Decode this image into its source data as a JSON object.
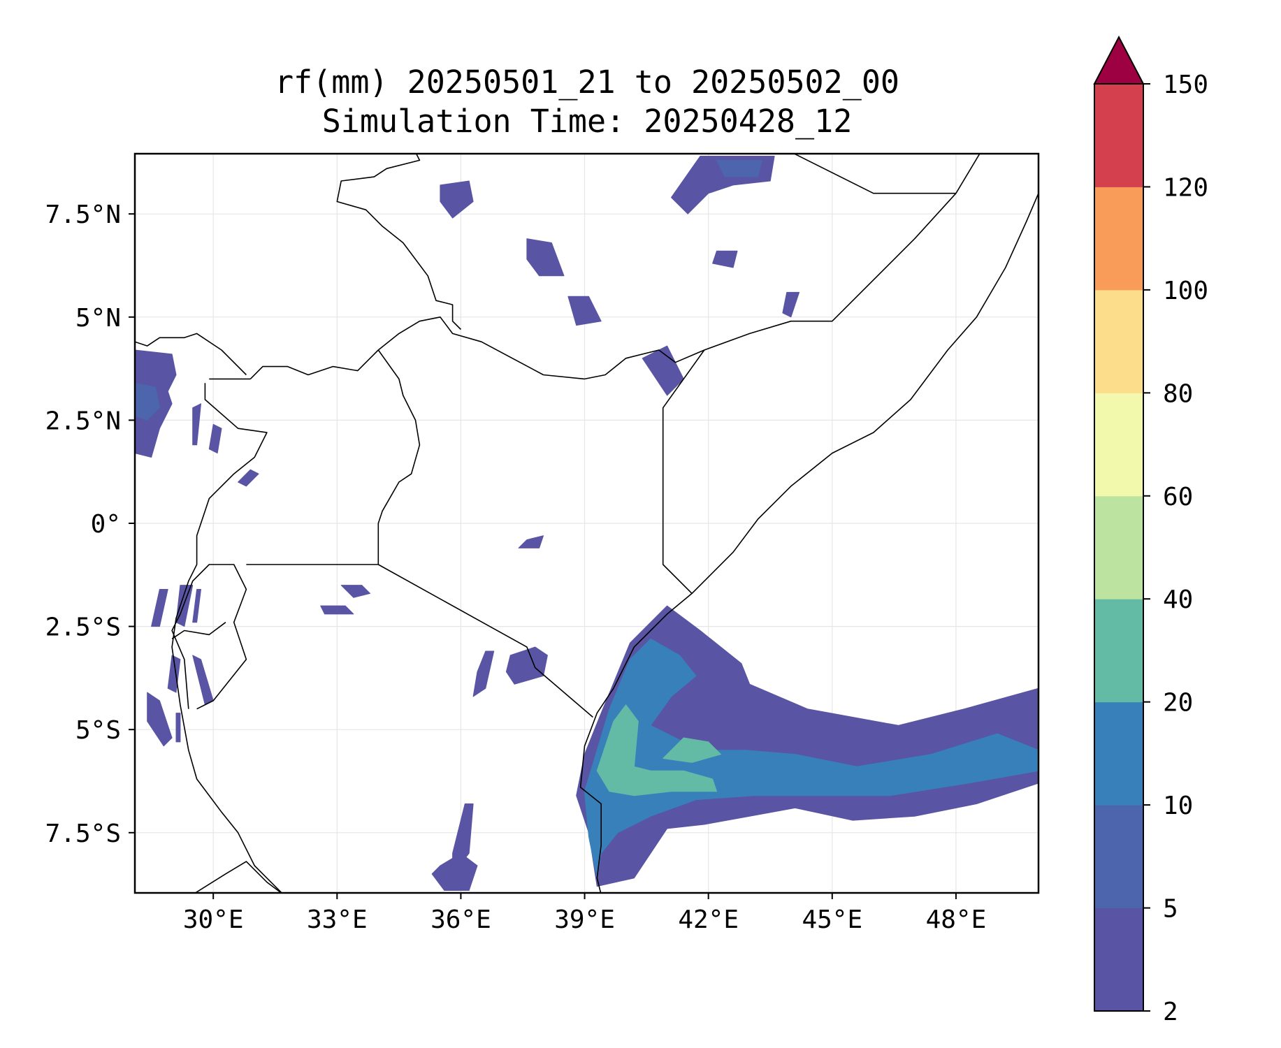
{
  "title": {
    "line1": "rf(mm) 20250501_21 to 20250502_00",
    "line2": "Simulation Time: 20250428_12"
  },
  "map": {
    "lon_range": [
      28.1,
      50.0
    ],
    "lat_range": [
      -8.96,
      8.96
    ],
    "lon_ticks": [
      {
        "value": 30,
        "label": "30°E"
      },
      {
        "value": 33,
        "label": "33°E"
      },
      {
        "value": 36,
        "label": "36°E"
      },
      {
        "value": 39,
        "label": "39°E"
      },
      {
        "value": 42,
        "label": "42°E"
      },
      {
        "value": 45,
        "label": "45°E"
      },
      {
        "value": 48,
        "label": "48°E"
      }
    ],
    "lat_ticks": [
      {
        "value": 7.5,
        "label": "7.5°N"
      },
      {
        "value": 5,
        "label": "5°N"
      },
      {
        "value": 2.5,
        "label": "2.5°N"
      },
      {
        "value": 0,
        "label": "0°"
      },
      {
        "value": -2.5,
        "label": "2.5°S"
      },
      {
        "value": -5,
        "label": "5°S"
      },
      {
        "value": -7.5,
        "label": "7.5°S"
      }
    ],
    "grid": true,
    "borders_color": "#000000"
  },
  "colorbar": {
    "levels": [
      2,
      5,
      10,
      20,
      40,
      60,
      80,
      100,
      120,
      150
    ],
    "labels": [
      "2",
      "5",
      "10",
      "20",
      "40",
      "60",
      "80",
      "100",
      "120",
      "150"
    ],
    "colors": [
      "#5954a4",
      "#4c65ad",
      "#3880ba",
      "#63bba6",
      "#bde3a0",
      "#f2f9ad",
      "#fcdd8c",
      "#f99c5a",
      "#d5404e"
    ],
    "extend_color": "#9e0142",
    "extend": "max",
    "placement": "right"
  },
  "rain_areas": [
    {
      "cat": 0,
      "poly": [
        [
          28.1,
          4.2
        ],
        [
          29.0,
          4.1
        ],
        [
          29.1,
          3.6
        ],
        [
          28.9,
          3.2
        ],
        [
          29.0,
          2.9
        ],
        [
          28.7,
          2.3
        ],
        [
          28.5,
          1.6
        ],
        [
          28.1,
          1.7
        ]
      ]
    },
    {
      "cat": 1,
      "poly": [
        [
          28.1,
          3.4
        ],
        [
          28.6,
          3.3
        ],
        [
          28.7,
          2.8
        ],
        [
          28.4,
          2.5
        ],
        [
          28.1,
          2.6
        ]
      ]
    },
    {
      "cat": 0,
      "poly": [
        [
          29.5,
          2.8
        ],
        [
          29.7,
          2.9
        ],
        [
          29.6,
          1.9
        ],
        [
          29.5,
          1.9
        ]
      ]
    },
    {
      "cat": 0,
      "poly": [
        [
          30.0,
          2.4
        ],
        [
          30.2,
          2.3
        ],
        [
          30.1,
          1.7
        ],
        [
          29.9,
          1.8
        ]
      ]
    },
    {
      "cat": 0,
      "poly": [
        [
          30.9,
          1.3
        ],
        [
          31.1,
          1.2
        ],
        [
          30.8,
          0.9
        ],
        [
          30.6,
          1.0
        ]
      ]
    },
    {
      "cat": 0,
      "poly": [
        [
          28.7,
          -1.6
        ],
        [
          28.9,
          -1.6
        ],
        [
          28.7,
          -2.5
        ],
        [
          28.5,
          -2.5
        ]
      ]
    },
    {
      "cat": 0,
      "poly": [
        [
          29.2,
          -1.5
        ],
        [
          29.5,
          -1.5
        ],
        [
          29.3,
          -2.5
        ],
        [
          29.1,
          -2.4
        ]
      ]
    },
    {
      "cat": 0,
      "poly": [
        [
          29.6,
          -1.6
        ],
        [
          29.7,
          -1.6
        ],
        [
          29.6,
          -2.4
        ],
        [
          29.5,
          -2.4
        ]
      ]
    },
    {
      "cat": 0,
      "poly": [
        [
          29.0,
          -3.2
        ],
        [
          29.2,
          -3.3
        ],
        [
          29.1,
          -4.1
        ],
        [
          28.9,
          -4.0
        ]
      ]
    },
    {
      "cat": 0,
      "poly": [
        [
          29.5,
          -3.2
        ],
        [
          29.7,
          -3.3
        ],
        [
          30.0,
          -4.3
        ],
        [
          29.8,
          -4.4
        ]
      ]
    },
    {
      "cat": 0,
      "poly": [
        [
          28.4,
          -4.1
        ],
        [
          28.7,
          -4.3
        ],
        [
          29.0,
          -5.2
        ],
        [
          28.8,
          -5.4
        ],
        [
          28.4,
          -4.8
        ]
      ]
    },
    {
      "cat": 0,
      "poly": [
        [
          29.1,
          -4.6
        ],
        [
          29.2,
          -4.6
        ],
        [
          29.2,
          -5.3
        ],
        [
          29.1,
          -5.3
        ]
      ]
    },
    {
      "cat": 0,
      "poly": [
        [
          33.1,
          -1.5
        ],
        [
          33.6,
          -1.5
        ],
        [
          33.8,
          -1.7
        ],
        [
          33.4,
          -1.8
        ]
      ]
    },
    {
      "cat": 0,
      "poly": [
        [
          32.6,
          -2.0
        ],
        [
          33.2,
          -2.0
        ],
        [
          33.4,
          -2.2
        ],
        [
          32.7,
          -2.2
        ]
      ]
    },
    {
      "cat": 0,
      "poly": [
        [
          36.6,
          -3.1
        ],
        [
          36.8,
          -3.1
        ],
        [
          36.6,
          -4.0
        ],
        [
          36.3,
          -4.2
        ],
        [
          36.4,
          -3.6
        ]
      ]
    },
    {
      "cat": 0,
      "poly": [
        [
          37.2,
          -3.2
        ],
        [
          37.8,
          -3.0
        ],
        [
          38.1,
          -3.2
        ],
        [
          38.0,
          -3.7
        ],
        [
          37.3,
          -3.9
        ],
        [
          37.1,
          -3.6
        ]
      ]
    },
    {
      "cat": 0,
      "poly": [
        [
          37.6,
          -0.4
        ],
        [
          38.0,
          -0.3
        ],
        [
          37.9,
          -0.6
        ],
        [
          37.4,
          -0.6
        ]
      ]
    },
    {
      "cat": 0,
      "poly": [
        [
          36.1,
          -6.8
        ],
        [
          36.3,
          -6.8
        ],
        [
          36.2,
          -8.0
        ],
        [
          35.8,
          -8.5
        ],
        [
          35.8,
          -8.0
        ]
      ]
    },
    {
      "cat": 0,
      "poly": [
        [
          35.5,
          -8.3
        ],
        [
          36.0,
          -8.0
        ],
        [
          36.4,
          -8.3
        ],
        [
          36.2,
          -8.9
        ],
        [
          35.6,
          -8.9
        ],
        [
          35.3,
          -8.5
        ]
      ]
    },
    {
      "cat": 0,
      "poly": [
        [
          35.5,
          8.2
        ],
        [
          36.2,
          8.3
        ],
        [
          36.3,
          7.8
        ],
        [
          35.8,
          7.4
        ],
        [
          35.5,
          7.8
        ]
      ]
    },
    {
      "cat": 0,
      "poly": [
        [
          37.6,
          6.9
        ],
        [
          38.2,
          6.8
        ],
        [
          38.5,
          6.0
        ],
        [
          37.9,
          6.0
        ],
        [
          37.6,
          6.4
        ]
      ]
    },
    {
      "cat": 0,
      "poly": [
        [
          38.6,
          5.5
        ],
        [
          39.1,
          5.5
        ],
        [
          39.4,
          4.9
        ],
        [
          38.8,
          4.8
        ]
      ]
    },
    {
      "cat": 0,
      "poly": [
        [
          41.8,
          8.9
        ],
        [
          43.6,
          8.9
        ],
        [
          43.5,
          8.3
        ],
        [
          42.6,
          8.2
        ],
        [
          42.0,
          8.0
        ],
        [
          41.5,
          7.5
        ],
        [
          41.1,
          7.9
        ]
      ]
    },
    {
      "cat": 1,
      "poly": [
        [
          42.2,
          8.8
        ],
        [
          43.3,
          8.8
        ],
        [
          43.2,
          8.4
        ],
        [
          42.4,
          8.4
        ]
      ]
    },
    {
      "cat": 0,
      "poly": [
        [
          42.2,
          6.6
        ],
        [
          42.7,
          6.6
        ],
        [
          42.6,
          6.2
        ],
        [
          42.1,
          6.3
        ]
      ]
    },
    {
      "cat": 0,
      "poly": [
        [
          43.9,
          5.6
        ],
        [
          44.2,
          5.6
        ],
        [
          44.0,
          5.0
        ],
        [
          43.8,
          5.1
        ]
      ]
    },
    {
      "cat": 0,
      "poly": [
        [
          40.4,
          4.0
        ],
        [
          41.0,
          4.3
        ],
        [
          41.4,
          3.5
        ],
        [
          41.0,
          3.1
        ]
      ]
    },
    {
      "cat": 0,
      "poly": [
        [
          39.4,
          -4.6
        ],
        [
          40.1,
          -2.9
        ],
        [
          41.0,
          -2.0
        ],
        [
          41.8,
          -2.6
        ],
        [
          42.8,
          -3.4
        ],
        [
          43.0,
          -3.9
        ],
        [
          44.4,
          -4.5
        ],
        [
          46.6,
          -4.9
        ],
        [
          48.2,
          -4.5
        ],
        [
          50.0,
          -4.0
        ],
        [
          50.0,
          -6.3
        ],
        [
          48.5,
          -6.8
        ],
        [
          47.0,
          -7.1
        ],
        [
          45.5,
          -7.2
        ],
        [
          44.1,
          -6.9
        ],
        [
          43.0,
          -7.1
        ],
        [
          41.9,
          -7.3
        ],
        [
          41.0,
          -7.4
        ],
        [
          40.2,
          -8.6
        ],
        [
          39.3,
          -8.8
        ],
        [
          39.1,
          -7.5
        ],
        [
          38.8,
          -6.6
        ],
        [
          39.0,
          -5.6
        ]
      ]
    },
    {
      "cat": 2,
      "poly": [
        [
          39.6,
          -4.5
        ],
        [
          40.1,
          -3.3
        ],
        [
          40.6,
          -2.8
        ],
        [
          41.3,
          -3.2
        ],
        [
          41.7,
          -3.7
        ],
        [
          41.1,
          -4.2
        ],
        [
          40.6,
          -4.9
        ],
        [
          41.8,
          -5.5
        ],
        [
          42.9,
          -5.5
        ],
        [
          44.1,
          -5.6
        ],
        [
          45.6,
          -5.9
        ],
        [
          47.4,
          -5.6
        ],
        [
          49.0,
          -5.1
        ],
        [
          50.0,
          -5.5
        ],
        [
          50.0,
          -6.0
        ],
        [
          48.3,
          -6.3
        ],
        [
          46.4,
          -6.6
        ],
        [
          44.9,
          -6.6
        ],
        [
          43.1,
          -6.6
        ],
        [
          41.7,
          -6.7
        ],
        [
          40.6,
          -7.1
        ],
        [
          39.8,
          -7.5
        ],
        [
          39.4,
          -8.0
        ],
        [
          39.3,
          -8.6
        ],
        [
          39.1,
          -7.6
        ],
        [
          39.0,
          -6.5
        ],
        [
          39.3,
          -5.5
        ]
      ]
    },
    {
      "cat": 3,
      "poly": [
        [
          39.7,
          -4.8
        ],
        [
          40.0,
          -4.4
        ],
        [
          40.3,
          -4.8
        ],
        [
          40.2,
          -5.9
        ],
        [
          40.6,
          -6.0
        ],
        [
          41.4,
          -6.0
        ],
        [
          42.1,
          -6.2
        ],
        [
          42.2,
          -6.5
        ],
        [
          41.1,
          -6.5
        ],
        [
          40.2,
          -6.6
        ],
        [
          39.6,
          -6.5
        ],
        [
          39.3,
          -6.0
        ],
        [
          39.5,
          -5.4
        ]
      ]
    },
    {
      "cat": 3,
      "poly": [
        [
          40.9,
          -5.7
        ],
        [
          41.4,
          -5.2
        ],
        [
          42.0,
          -5.3
        ],
        [
          42.3,
          -5.6
        ],
        [
          41.6,
          -5.8
        ]
      ]
    }
  ],
  "borders": [
    [
      [
        29.5,
        -9.0
      ],
      [
        30.3,
        -8.5
      ],
      [
        30.8,
        -8.2
      ],
      [
        31.3,
        -8.7
      ],
      [
        31.7,
        -9.0
      ]
    ],
    [
      [
        29.4,
        -4.5
      ],
      [
        29.3,
        -3.3
      ],
      [
        29.0,
        -2.6
      ],
      [
        29.2,
        -2.2
      ],
      [
        29.5,
        -1.4
      ],
      [
        29.9,
        -1.0
      ],
      [
        30.5,
        -1.0
      ],
      [
        30.8,
        -1.6
      ],
      [
        30.5,
        -2.4
      ],
      [
        30.8,
        -3.3
      ],
      [
        30.0,
        -4.3
      ],
      [
        29.6,
        -4.5
      ]
    ],
    [
      [
        29.0,
        -2.8
      ],
      [
        29.3,
        -2.6
      ],
      [
        29.9,
        -2.7
      ],
      [
        30.3,
        -2.4
      ]
    ],
    [
      [
        30.8,
        -1.0
      ],
      [
        31.8,
        -1.0
      ],
      [
        34.0,
        -1.0
      ],
      [
        37.6,
        -3.0
      ],
      [
        37.8,
        -3.5
      ],
      [
        39.2,
        -4.7
      ]
    ],
    [
      [
        34.0,
        -1.0
      ],
      [
        34.0,
        0.0
      ],
      [
        34.1,
        0.3
      ],
      [
        34.5,
        1.0
      ],
      [
        34.8,
        1.2
      ],
      [
        35.0,
        1.9
      ],
      [
        34.9,
        2.5
      ],
      [
        34.6,
        3.1
      ],
      [
        34.5,
        3.5
      ],
      [
        34.0,
        4.2
      ]
    ],
    [
      [
        34.0,
        4.2
      ],
      [
        34.5,
        4.6
      ],
      [
        35.0,
        4.9
      ],
      [
        35.5,
        5.0
      ],
      [
        35.8,
        4.6
      ],
      [
        36.5,
        4.4
      ],
      [
        38.0,
        3.6
      ],
      [
        39.0,
        3.5
      ],
      [
        39.5,
        3.6
      ],
      [
        40.0,
        4.0
      ],
      [
        40.8,
        4.2
      ],
      [
        41.2,
        3.9
      ],
      [
        41.9,
        4.2
      ],
      [
        43.0,
        4.6
      ],
      [
        44.0,
        4.9
      ],
      [
        45.0,
        4.9
      ],
      [
        47.0,
        6.9
      ],
      [
        48.0,
        8.0
      ],
      [
        48.6,
        9.0
      ]
    ],
    [
      [
        41.9,
        4.2
      ],
      [
        40.9,
        2.8
      ],
      [
        40.9,
        -1.0
      ],
      [
        41.6,
        -1.7
      ]
    ],
    [
      [
        30.9,
        3.5
      ],
      [
        31.2,
        3.8
      ],
      [
        31.8,
        3.8
      ],
      [
        32.3,
        3.6
      ],
      [
        32.9,
        3.8
      ],
      [
        33.5,
        3.7
      ],
      [
        34.0,
        4.2
      ]
    ],
    [
      [
        29.9,
        3.5
      ],
      [
        30.9,
        3.5
      ]
    ],
    [
      [
        28.1,
        4.4
      ],
      [
        28.4,
        4.3
      ],
      [
        28.7,
        4.5
      ],
      [
        29.3,
        4.5
      ],
      [
        29.6,
        4.6
      ],
      [
        30.2,
        4.2
      ],
      [
        30.8,
        3.6
      ]
    ],
    [
      [
        29.8,
        3.4
      ],
      [
        29.8,
        3.0
      ],
      [
        30.6,
        2.3
      ],
      [
        31.3,
        2.2
      ],
      [
        31.0,
        1.6
      ],
      [
        30.5,
        1.2
      ],
      [
        29.9,
        0.6
      ],
      [
        29.6,
        -0.3
      ],
      [
        29.6,
        -1.0
      ],
      [
        29.4,
        -1.4
      ],
      [
        29.1,
        -2.3
      ],
      [
        29.0,
        -3.0
      ],
      [
        29.2,
        -4.4
      ],
      [
        29.4,
        -5.5
      ],
      [
        29.6,
        -6.2
      ],
      [
        30.2,
        -7.0
      ],
      [
        30.6,
        -7.5
      ],
      [
        31.0,
        -8.3
      ],
      [
        31.7,
        -9.0
      ]
    ],
    [
      [
        34.9,
        9.0
      ],
      [
        35.0,
        8.8
      ],
      [
        34.2,
        8.6
      ],
      [
        33.9,
        8.4
      ],
      [
        33.1,
        8.3
      ],
      [
        33.0,
        7.8
      ],
      [
        33.7,
        7.6
      ],
      [
        34.1,
        7.2
      ],
      [
        34.6,
        6.8
      ],
      [
        35.2,
        6.0
      ],
      [
        35.4,
        5.4
      ],
      [
        35.8,
        5.3
      ],
      [
        35.8,
        4.9
      ],
      [
        36.0,
        4.7
      ]
    ],
    [
      [
        44.0,
        9.0
      ],
      [
        46.0,
        8.0
      ],
      [
        47.0,
        8.0
      ],
      [
        48.0,
        8.0
      ]
    ],
    [
      [
        50.0,
        8.0
      ],
      [
        49.7,
        7.3
      ],
      [
        49.2,
        6.2
      ],
      [
        48.5,
        5.0
      ],
      [
        47.8,
        4.2
      ],
      [
        46.9,
        3.0
      ],
      [
        46.0,
        2.2
      ],
      [
        45.0,
        1.7
      ],
      [
        44.0,
        0.9
      ],
      [
        43.2,
        0.1
      ],
      [
        42.6,
        -0.7
      ],
      [
        41.6,
        -1.7
      ],
      [
        41.0,
        -2.2
      ],
      [
        40.6,
        -2.6
      ],
      [
        40.2,
        -3.0
      ],
      [
        39.7,
        -4.0
      ],
      [
        39.3,
        -4.6
      ],
      [
        39.0,
        -5.4
      ],
      [
        38.9,
        -6.4
      ],
      [
        39.4,
        -6.8
      ],
      [
        39.4,
        -7.8
      ],
      [
        39.3,
        -8.6
      ],
      [
        39.4,
        -9.0
      ]
    ]
  ]
}
